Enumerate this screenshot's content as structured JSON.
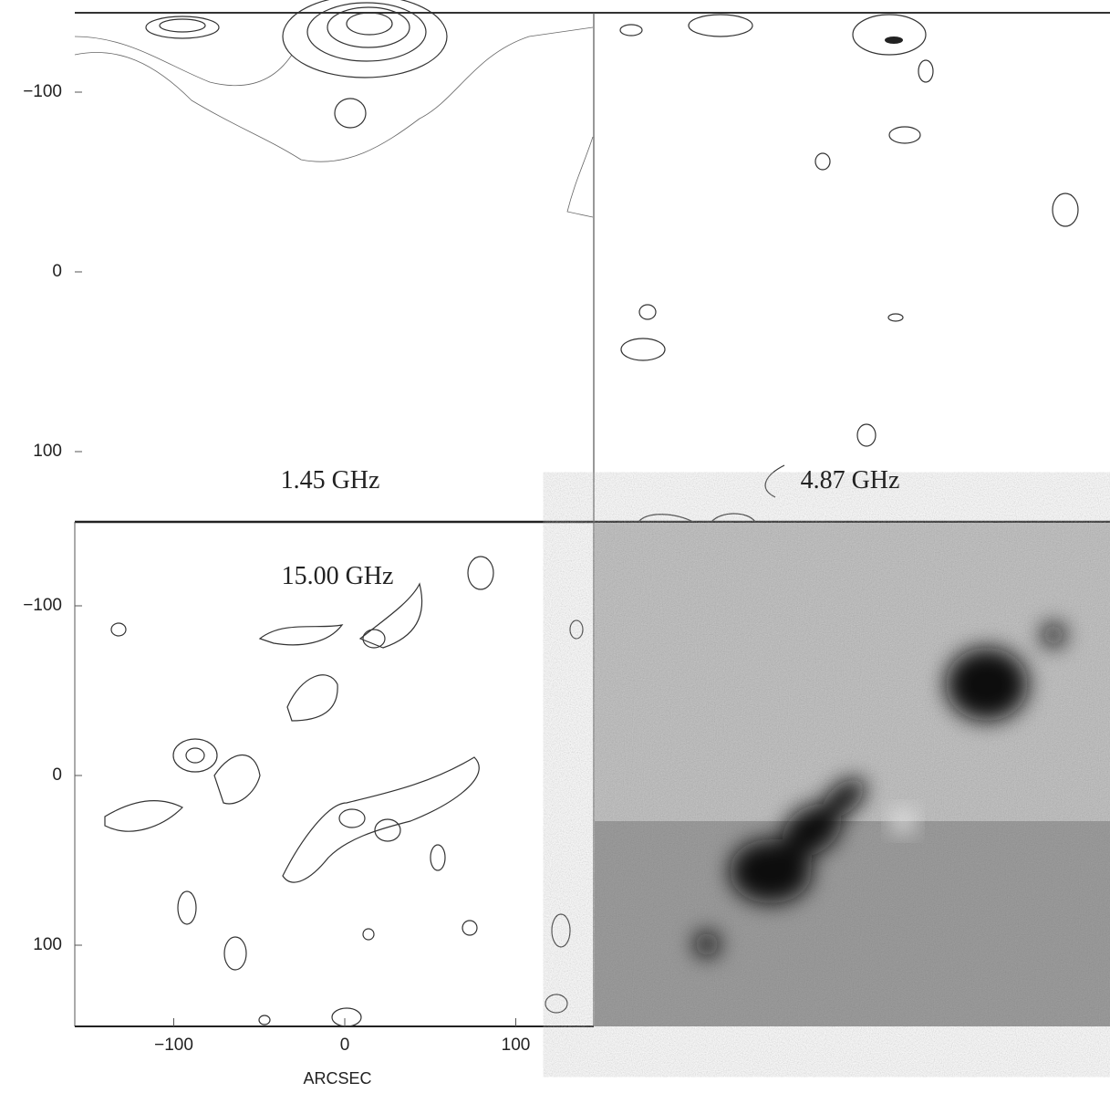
{
  "panels": [
    {
      "label": "1.45 GHz"
    },
    {
      "label": "4.87 GHz"
    },
    {
      "label": "15.00 GHz"
    }
  ],
  "axes": {
    "upper_y_ticks": [
      {
        "value": -100,
        "label": "−100"
      },
      0,
      100
    ],
    "lower_y_ticks": [
      {
        "value": -100,
        "label": "−100"
      },
      0,
      100
    ],
    "x_ticks": [
      {
        "value": -100,
        "label": "−100"
      },
      0,
      100
    ],
    "x_label": "ARCSEC"
  }
}
